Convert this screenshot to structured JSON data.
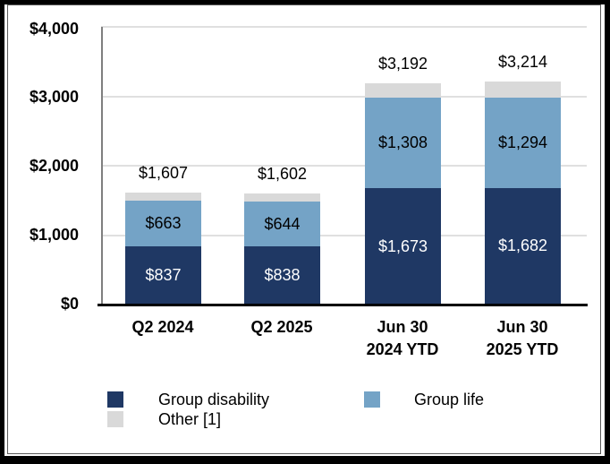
{
  "chart_data": {
    "type": "bar",
    "stacked": true,
    "title": "",
    "xlabel": "",
    "ylabel": "",
    "grid": true,
    "categories": [
      "Q2 2024",
      "Q2 2025",
      "Jun 30 2024 YTD",
      "Jun 30 2025 YTD"
    ],
    "category_lines": [
      [
        "Q2 2024"
      ],
      [
        "Q2 2025"
      ],
      [
        "Jun 30",
        "2024 YTD"
      ],
      [
        "Jun 30",
        "2025 YTD"
      ]
    ],
    "series": [
      {
        "name": "Group disability",
        "color": "#1F3864",
        "label_color": "#FFFFFF",
        "values": [
          837,
          838,
          1673,
          1682
        ],
        "labels": [
          "$837",
          "$838",
          "$1,673",
          "$1,682"
        ]
      },
      {
        "name": "Group life",
        "color": "#74A3C6",
        "label_color": "#000000",
        "values": [
          663,
          644,
          1308,
          1294
        ],
        "labels": [
          "$663",
          "$644",
          "$1,308",
          "$1,294"
        ]
      },
      {
        "name": "Other [1]",
        "color": "#D9D9D9",
        "label_color": "#000000",
        "values": [
          107,
          120,
          211,
          238
        ],
        "labels": [
          "",
          "",
          "",
          ""
        ]
      }
    ],
    "totals": {
      "labels": [
        "$1,607",
        "$1,602",
        "$3,192",
        "$3,214"
      ],
      "values": [
        1607,
        1602,
        3192,
        3214
      ]
    },
    "y_axis": {
      "min": 0,
      "max": 4000,
      "tick_values": [
        4000,
        3000,
        2000,
        1000,
        0
      ],
      "tick_labels": [
        "$4,000",
        "$3,000",
        "$2,000",
        "$1,000",
        "$0"
      ]
    },
    "legend": {
      "position": "bottom",
      "items": [
        {
          "label": "Group disability",
          "color": "#1F3864"
        },
        {
          "label": "Other [1]",
          "color": "#D9D9D9"
        },
        {
          "label": "Group life",
          "color": "#74A3C6"
        }
      ]
    }
  }
}
